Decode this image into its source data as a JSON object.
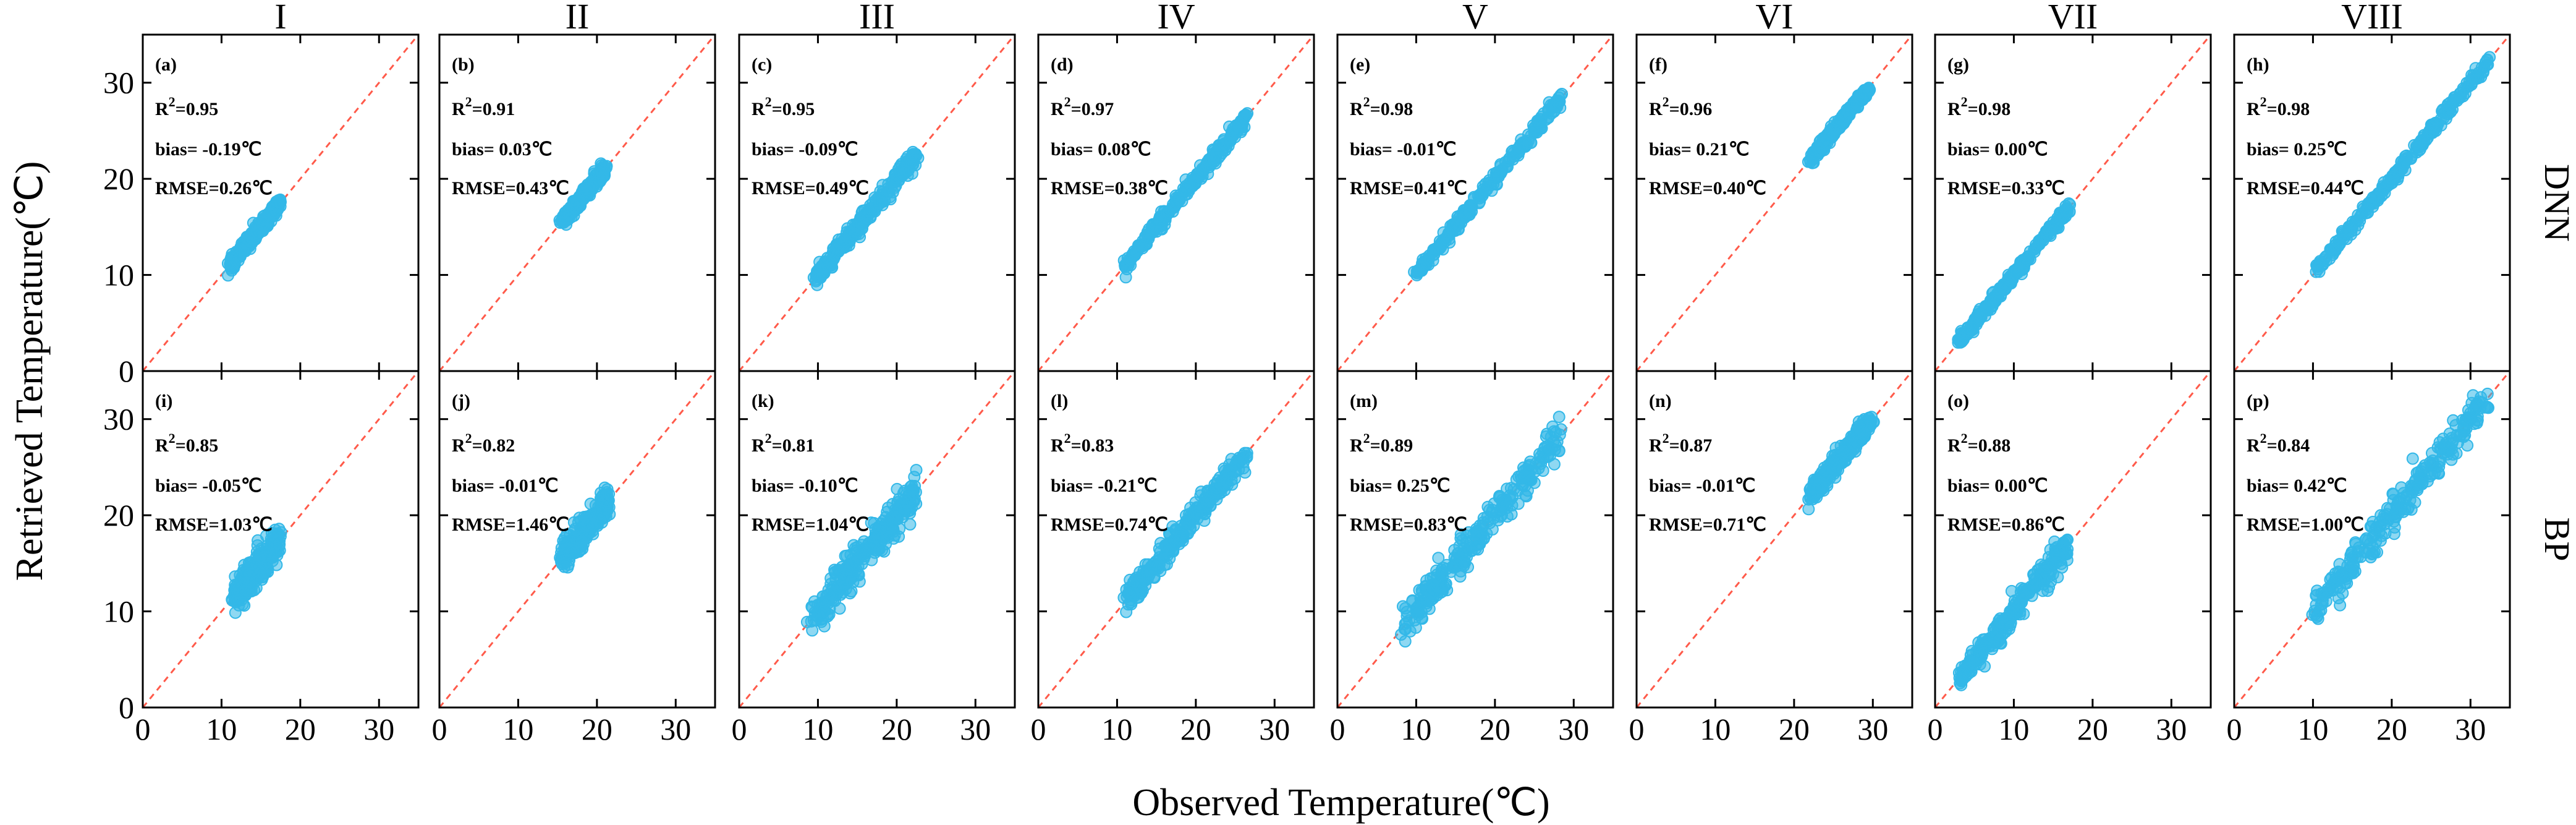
{
  "chart_data": {
    "type": "scatter",
    "xlabel": "Observed Temperature(℃)",
    "ylabel": "Retrieved Temperature(℃)",
    "columns": [
      "I",
      "II",
      "III",
      "IV",
      "V",
      "VI",
      "VII",
      "VIII"
    ],
    "rows": [
      "DNN",
      "BP"
    ],
    "xlim": [
      0,
      35
    ],
    "ylim": [
      0,
      35
    ],
    "xticks": [
      0,
      10,
      20,
      30
    ],
    "yticks": [
      0,
      10,
      20,
      30
    ],
    "reference_line": "1:1 dashed",
    "point_color": "#33b8e8",
    "line_color": "#ff5a4a",
    "panels": [
      {
        "tag": "(a)",
        "r2": "0.95",
        "bias": "-0.19",
        "rmse": "0.26",
        "xrange": [
          11,
          17.5
        ],
        "spread": 0.6
      },
      {
        "tag": "(b)",
        "r2": "0.91",
        "bias": "0.03",
        "rmse": "0.43",
        "xrange": [
          15.5,
          21
        ],
        "spread": 0.6
      },
      {
        "tag": "(c)",
        "r2": "0.95",
        "bias": "-0.09",
        "rmse": "0.49",
        "xrange": [
          9.5,
          22.5
        ],
        "spread": 0.8
      },
      {
        "tag": "(d)",
        "r2": "0.97",
        "bias": "0.08",
        "rmse": "0.38",
        "xrange": [
          11,
          26.5
        ],
        "spread": 0.6
      },
      {
        "tag": "(e)",
        "r2": "0.98",
        "bias": "-0.01",
        "rmse": "0.41",
        "xrange": [
          10,
          28.5
        ],
        "spread": 0.6
      },
      {
        "tag": "(f)",
        "r2": "0.96",
        "bias": "0.21",
        "rmse": "0.40",
        "xrange": [
          22,
          29.5
        ],
        "spread": 0.5
      },
      {
        "tag": "(g)",
        "r2": "0.98",
        "bias": "0.00",
        "rmse": "0.33",
        "xrange": [
          3,
          17
        ],
        "spread": 0.5
      },
      {
        "tag": "(h)",
        "r2": "0.98",
        "bias": "0.25",
        "rmse": "0.44",
        "xrange": [
          10.5,
          32.5
        ],
        "spread": 0.6
      },
      {
        "tag": "(i)",
        "r2": "0.85",
        "bias": "-0.05",
        "rmse": "1.03",
        "xrange": [
          11.5,
          17.5
        ],
        "spread": 1.4
      },
      {
        "tag": "(j)",
        "r2": "0.82",
        "bias": "-0.01",
        "rmse": "1.46",
        "xrange": [
          15.5,
          21.5
        ],
        "spread": 1.2
      },
      {
        "tag": "(k)",
        "r2": "0.81",
        "bias": "-0.10",
        "rmse": "1.04",
        "xrange": [
          9,
          22.5
        ],
        "spread": 1.6
      },
      {
        "tag": "(l)",
        "r2": "0.83",
        "bias": "-0.21",
        "rmse": "0.74",
        "xrange": [
          11,
          26.5
        ],
        "spread": 1.1
      },
      {
        "tag": "(m)",
        "r2": "0.89",
        "bias": "0.25",
        "rmse": "0.83",
        "xrange": [
          8,
          28.5
        ],
        "spread": 1.6
      },
      {
        "tag": "(n)",
        "r2": "0.87",
        "bias": "-0.01",
        "rmse": "0.71",
        "xrange": [
          22,
          30
        ],
        "spread": 1.0
      },
      {
        "tag": "(o)",
        "r2": "0.88",
        "bias": "0.00",
        "rmse": "0.86",
        "xrange": [
          3,
          17
        ],
        "spread": 1.2
      },
      {
        "tag": "(p)",
        "r2": "0.84",
        "bias": "0.42",
        "rmse": "1.00",
        "xrange": [
          10,
          32.5
        ],
        "spread": 1.5
      }
    ]
  }
}
